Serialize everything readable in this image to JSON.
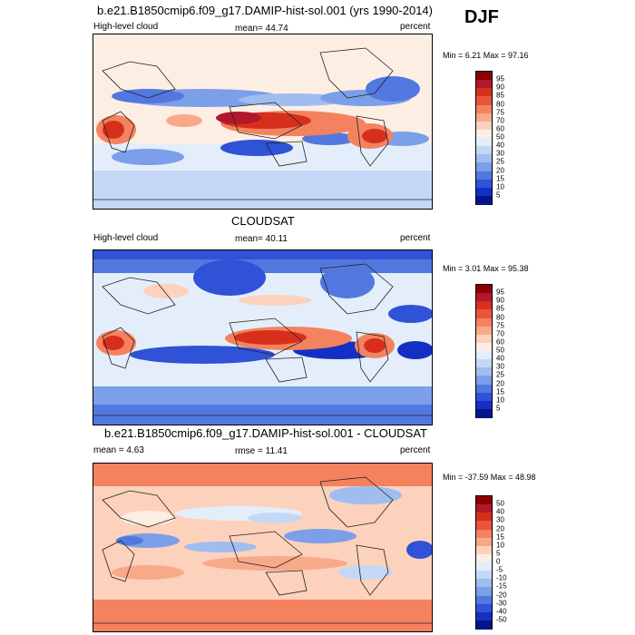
{
  "season": "DJF",
  "panels": [
    {
      "title": "b.e21.B1850cmip6.f09_g17.DAMIP-hist-sol.001 (yrs 1990-2014)",
      "left_label": "High-level cloud",
      "center_label": "mean=  44.74",
      "right_label": "percent",
      "minmax": "Min =   6.21 Max =  97.16"
    },
    {
      "title": "CLOUDSAT",
      "left_label": "High-level cloud",
      "center_label": "mean=  40.11",
      "right_label": "percent",
      "minmax": "Min =   3.01 Max =  95.38"
    },
    {
      "title": "b.e21.B1850cmip6.f09_g17.DAMIP-hist-sol.001 - CLOUDSAT",
      "left_label": "mean =   4.63",
      "center_label": "rmse =  11.41",
      "right_label": "percent",
      "minmax": "Min = -37.59 Max =  48.98"
    }
  ],
  "colorbar_abs": {
    "labels": [
      "95",
      "90",
      "85",
      "80",
      "75",
      "70",
      "60",
      "50",
      "40",
      "30",
      "25",
      "20",
      "15",
      "10",
      "5"
    ],
    "colors": [
      "#8b0000",
      "#b2182b",
      "#d6301d",
      "#e9553a",
      "#f4825f",
      "#f8a98a",
      "#fcd2bc",
      "#fdeee4",
      "#e4eefa",
      "#c4d8f5",
      "#a0bdef",
      "#7b9fe9",
      "#5278e0",
      "#2f52d6",
      "#1430c4",
      "#06148a"
    ]
  },
  "colorbar_diff": {
    "labels": [
      "50",
      "40",
      "30",
      "20",
      "15",
      "10",
      "5",
      "0",
      "-5",
      "-10",
      "-15",
      "-20",
      "-30",
      "-40",
      "-50"
    ],
    "colors": [
      "#8b0000",
      "#b2182b",
      "#d6301d",
      "#e9553a",
      "#f4825f",
      "#f8a98a",
      "#fcd2bc",
      "#fdeee4",
      "#e4eefa",
      "#c4d8f5",
      "#a0bdef",
      "#7b9fe9",
      "#5278e0",
      "#2f52d6",
      "#1430c4",
      "#06148a"
    ]
  }
}
